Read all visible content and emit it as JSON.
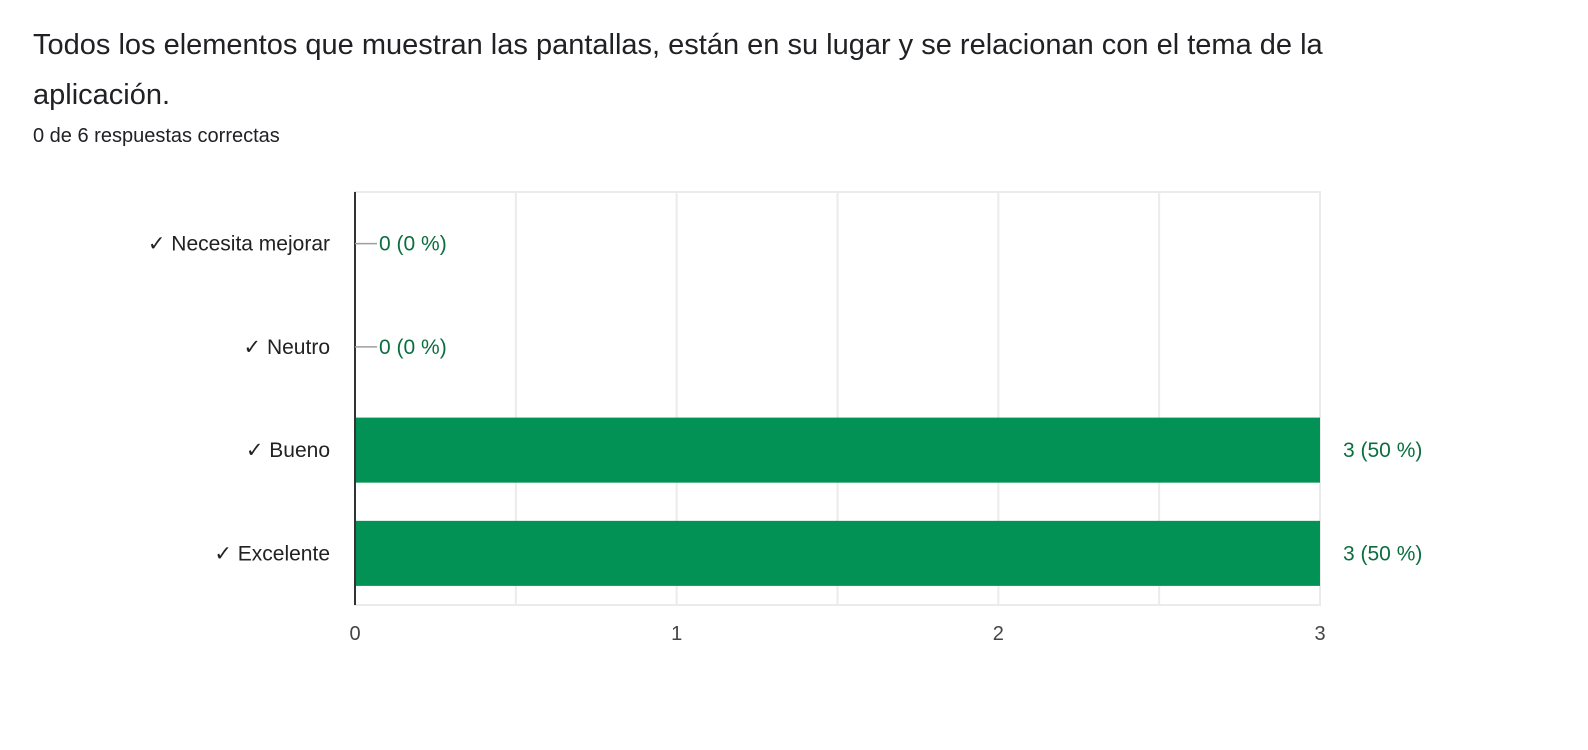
{
  "question": {
    "title": "Todos los elementos que muestran las pantallas, están en su lugar y se relacionan con el tema de la aplicación.",
    "score": "0 de 6 respuestas correctas"
  },
  "chart_data": {
    "type": "bar",
    "orientation": "horizontal",
    "categories": [
      "✓ Necesita mejorar",
      "✓ Neutro",
      "✓ Bueno",
      "✓ Excelente"
    ],
    "values": [
      0,
      0,
      3,
      3
    ],
    "data_labels": [
      "0 (0 %)",
      "0 (0 %)",
      "3 (50 %)",
      "3 (50 %)"
    ],
    "x_ticks": [
      0,
      1,
      2,
      3
    ],
    "xlim": [
      0,
      3
    ],
    "grid": true,
    "bar_color": "#039255",
    "label_color": "#0b6e3f"
  }
}
